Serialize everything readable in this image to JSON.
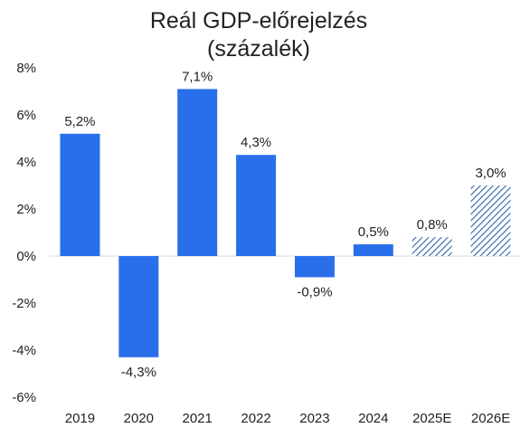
{
  "chart_data": {
    "type": "bar",
    "title_lines": [
      "Reál GDP-előrejelzés",
      "(százalék)"
    ],
    "categories": [
      "2019",
      "2020",
      "2021",
      "2022",
      "2023",
      "2024",
      "2025E",
      "2026E"
    ],
    "values": [
      5.2,
      -4.3,
      7.1,
      4.3,
      -0.9,
      0.5,
      0.8,
      3.0
    ],
    "value_labels": [
      "5,2%",
      "-4,3%",
      "7,1%",
      "4,3%",
      "-0,9%",
      "0,5%",
      "0,8%",
      "3,0%"
    ],
    "estimate": [
      false,
      false,
      false,
      false,
      false,
      false,
      true,
      true
    ],
    "y_ticks": [
      8,
      6,
      4,
      2,
      0,
      -2,
      -4,
      -6
    ],
    "y_tick_labels": [
      "8%",
      "6%",
      "4%",
      "2%",
      "0%",
      "-2%",
      "-4%",
      "-6%"
    ],
    "ylim": [
      -6,
      8
    ],
    "grid": false,
    "legend": "none",
    "colors": {
      "bar": "#2a6fea",
      "estimate_stripe": "#3b6fae",
      "zero_line": "#d9d9d9",
      "text": "#222222"
    }
  }
}
